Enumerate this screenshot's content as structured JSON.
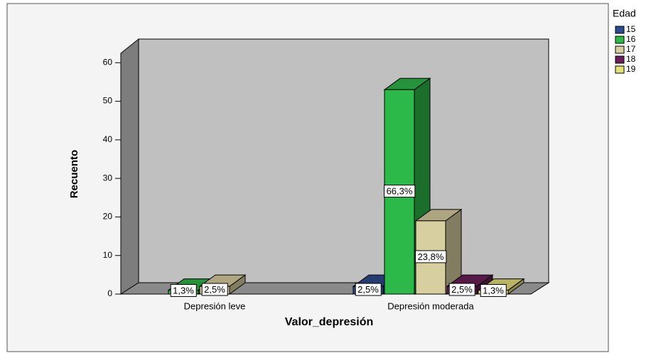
{
  "chart_data": {
    "type": "bar3d",
    "x_label": "Valor_depresión",
    "y_label": "Recuento",
    "legend_title": "Edad",
    "categories": [
      "Depresión leve",
      "Depresión moderada"
    ],
    "series": [
      {
        "name": "15",
        "color": "#2d4b8e",
        "values": [
          null,
          2
        ],
        "value_labels": [
          null,
          "2,5%"
        ]
      },
      {
        "name": "16",
        "color": "#2db84a",
        "values": [
          1,
          53
        ],
        "value_labels": [
          "1,3%",
          "66,3%"
        ]
      },
      {
        "name": "17",
        "color": "#d8cfa0",
        "values": [
          2,
          19
        ],
        "value_labels": [
          "2,5%",
          "23,8%"
        ]
      },
      {
        "name": "18",
        "color": "#6b1f5a",
        "values": [
          null,
          2
        ],
        "value_labels": [
          null,
          "2,5%"
        ]
      },
      {
        "name": "19",
        "color": "#e6e07a",
        "values": [
          null,
          1
        ],
        "value_labels": [
          null,
          "1,3%"
        ]
      }
    ],
    "ylim": [
      0,
      63
    ],
    "yticks": [
      0,
      10,
      20,
      30,
      40,
      50,
      60
    ],
    "legend": "right"
  }
}
